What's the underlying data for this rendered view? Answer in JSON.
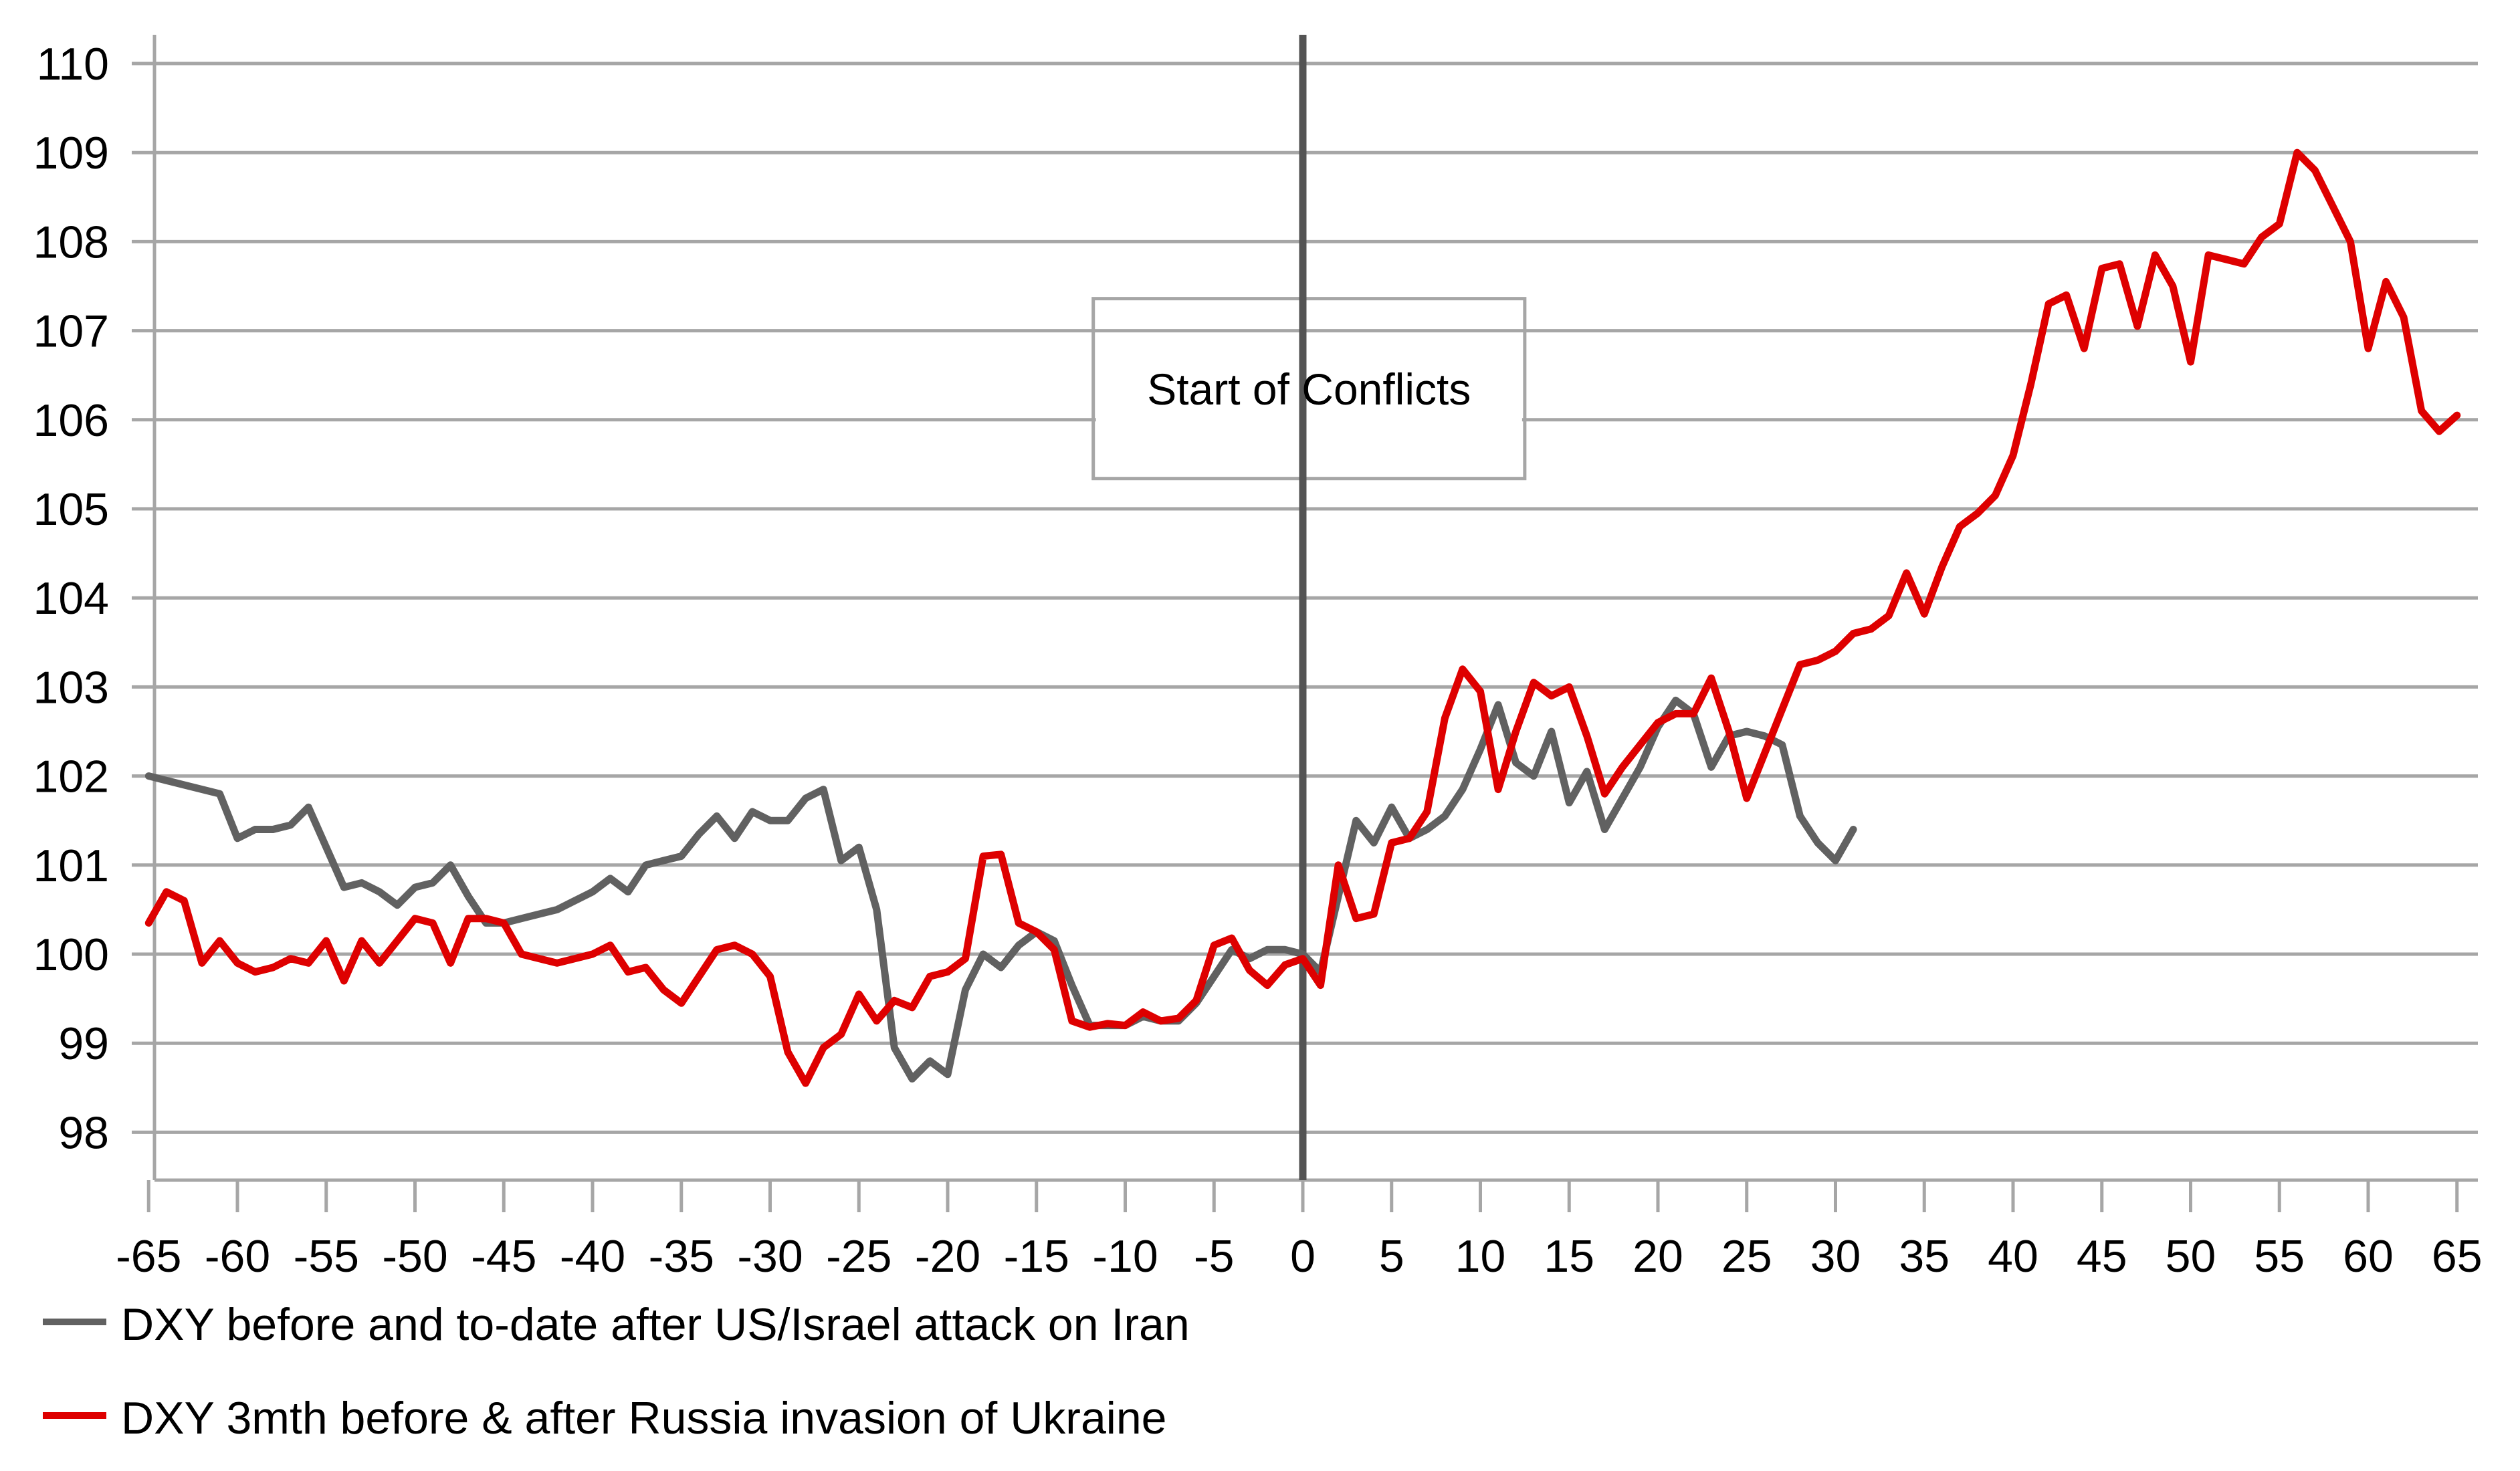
{
  "chart_data": {
    "type": "line",
    "title": "",
    "annotation": "Start of Conflicts",
    "grid": true,
    "legend_position": "bottom-left",
    "x_axis": {
      "range": [
        -65,
        65
      ],
      "tick_step": 5,
      "ticks": [
        -65,
        -60,
        -55,
        -50,
        -45,
        -40,
        -35,
        -30,
        -25,
        -20,
        -15,
        -10,
        -5,
        0,
        5,
        10,
        15,
        20,
        25,
        30,
        35,
        40,
        45,
        50,
        55,
        60,
        65
      ]
    },
    "y_axis": {
      "range": [
        97.4,
        110.3
      ],
      "ticks": [
        98,
        99,
        100,
        101,
        102,
        103,
        104,
        105,
        106,
        107,
        108,
        109,
        110
      ]
    },
    "event_line": {
      "x": 0,
      "color": "#545454"
    },
    "annotation_box": {
      "label": "Start of Conflicts",
      "x_from": -11.8,
      "x_to": 12.5,
      "v_top": 107.36,
      "v_bottom": 105.34,
      "border_color": "#A6A6A6",
      "fill": "#ffffff"
    },
    "series": [
      {
        "name": "DXY before and to-date after US/Israel attack on Iran",
        "color": "#616161",
        "x_start": -65,
        "x_step": 1,
        "values": [
          102.0,
          101.95,
          101.9,
          101.85,
          101.8,
          101.3,
          101.4,
          101.4,
          101.45,
          101.65,
          101.2,
          100.75,
          100.8,
          100.7,
          100.55,
          100.75,
          100.8,
          101.0,
          100.65,
          100.35,
          100.35,
          100.4,
          100.45,
          100.5,
          100.6,
          100.7,
          100.85,
          100.7,
          101.0,
          101.05,
          101.1,
          101.35,
          101.55,
          101.3,
          101.6,
          101.5,
          101.5,
          101.75,
          101.85,
          101.05,
          101.2,
          100.5,
          98.95,
          98.6,
          98.8,
          98.65,
          99.6,
          100.0,
          99.85,
          100.1,
          100.25,
          100.15,
          99.65,
          99.2,
          99.2,
          99.2,
          99.3,
          99.25,
          99.25,
          99.45,
          99.75,
          100.05,
          99.95,
          100.05,
          100.05,
          100.0,
          99.8,
          100.65,
          101.5,
          101.25,
          101.65,
          101.3,
          101.4,
          101.55,
          101.85,
          102.3,
          102.8,
          102.15,
          102.0,
          102.5,
          101.7,
          102.05,
          101.4,
          101.75,
          102.1,
          102.55,
          102.85,
          102.7,
          102.1,
          102.45,
          102.5,
          102.45,
          102.35,
          101.55,
          101.25,
          101.05,
          101.4
        ]
      },
      {
        "name": "DXY 3mth before & after Russia invasion of Ukraine",
        "color": "#DE0000",
        "x_start": -65,
        "x_step": 1,
        "values": [
          100.35,
          100.7,
          100.6,
          99.9,
          100.15,
          99.9,
          99.8,
          99.85,
          99.95,
          99.9,
          100.15,
          99.7,
          100.15,
          99.9,
          100.15,
          100.4,
          100.35,
          99.9,
          100.4,
          100.4,
          100.35,
          100.0,
          99.95,
          99.9,
          99.95,
          100.0,
          100.1,
          99.8,
          99.85,
          99.6,
          99.45,
          99.75,
          100.05,
          100.1,
          100.0,
          99.75,
          98.9,
          98.55,
          98.95,
          99.1,
          99.55,
          99.25,
          99.48,
          99.4,
          99.75,
          99.8,
          99.95,
          101.1,
          101.12,
          100.35,
          100.25,
          100.05,
          99.25,
          99.18,
          99.22,
          99.2,
          99.35,
          99.25,
          99.28,
          99.48,
          100.1,
          100.18,
          99.82,
          99.65,
          99.88,
          99.95,
          99.65,
          101.0,
          100.4,
          100.45,
          101.25,
          101.3,
          101.6,
          102.65,
          103.2,
          102.95,
          101.85,
          102.5,
          103.05,
          102.9,
          103.0,
          102.45,
          101.8,
          102.1,
          102.35,
          102.6,
          102.7,
          102.7,
          103.1,
          102.5,
          101.75,
          102.25,
          102.75,
          103.25,
          103.3,
          103.4,
          103.6,
          103.65,
          103.8,
          104.28,
          103.82,
          104.35,
          104.8,
          104.95,
          105.15,
          105.6,
          106.4,
          107.3,
          107.4,
          106.8,
          107.7,
          107.75,
          107.05,
          107.85,
          107.5,
          106.65,
          107.85,
          107.8,
          107.75,
          108.05,
          108.2,
          109.0,
          108.8,
          108.4,
          108.0,
          106.8,
          107.55,
          107.15,
          106.1,
          105.87,
          106.05
        ]
      }
    ],
    "grid_color": "#A6A6A6",
    "axis_color": "#A6A6A6"
  },
  "legend": {
    "items": [
      {
        "label": "DXY before and to-date after US/Israel attack on Iran",
        "color": "#616161"
      },
      {
        "label": "DXY 3mth before & after Russia invasion of Ukraine",
        "color": "#DE0000"
      }
    ]
  }
}
